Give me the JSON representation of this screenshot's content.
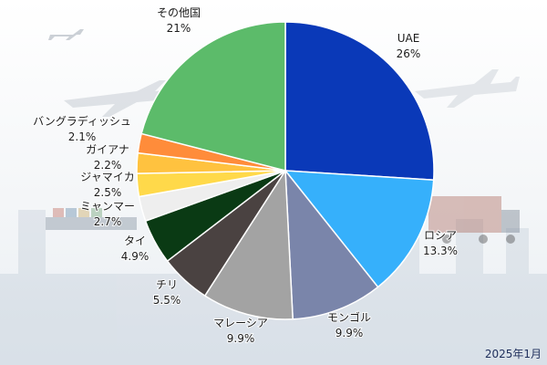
{
  "date_note": "2025年1月",
  "chart_data": {
    "type": "pie",
    "start": "top",
    "direction": "clockwise",
    "slices": [
      {
        "label": "UAE",
        "value_text": "26%",
        "value": 26,
        "color": "#0a39b8"
      },
      {
        "label": "ロシア",
        "value_text": "13.3%",
        "value": 13.3,
        "color": "#36b0fb"
      },
      {
        "label": "モンゴル",
        "value_text": "9.9%",
        "value": 9.9,
        "color": "#7a85aa"
      },
      {
        "label": "マレーシア",
        "value_text": "9.9%",
        "value": 9.9,
        "color": "#a3a3a3"
      },
      {
        "label": "チリ",
        "value_text": "5.5%",
        "value": 5.5,
        "color": "#4a4241"
      },
      {
        "label": "タイ",
        "value_text": "4.9%",
        "value": 4.9,
        "color": "#0a3a14"
      },
      {
        "label": "ミャンマー",
        "value_text": "2.7%",
        "value": 2.7,
        "color": "#eeeeee"
      },
      {
        "label": "ジャマイカ",
        "value_text": "2.5%",
        "value": 2.5,
        "color": "#ffd94a"
      },
      {
        "label": "ガイアナ",
        "value_text": "2.2%",
        "value": 2.2,
        "color": "#ffc23f"
      },
      {
        "label": "バングラディッシュ",
        "value_text": "2.1%",
        "value": 2.1,
        "color": "#ff8c3a"
      },
      {
        "label": "その他国",
        "value_text": "21%",
        "value": 21,
        "color": "#5cbb6a"
      }
    ]
  }
}
